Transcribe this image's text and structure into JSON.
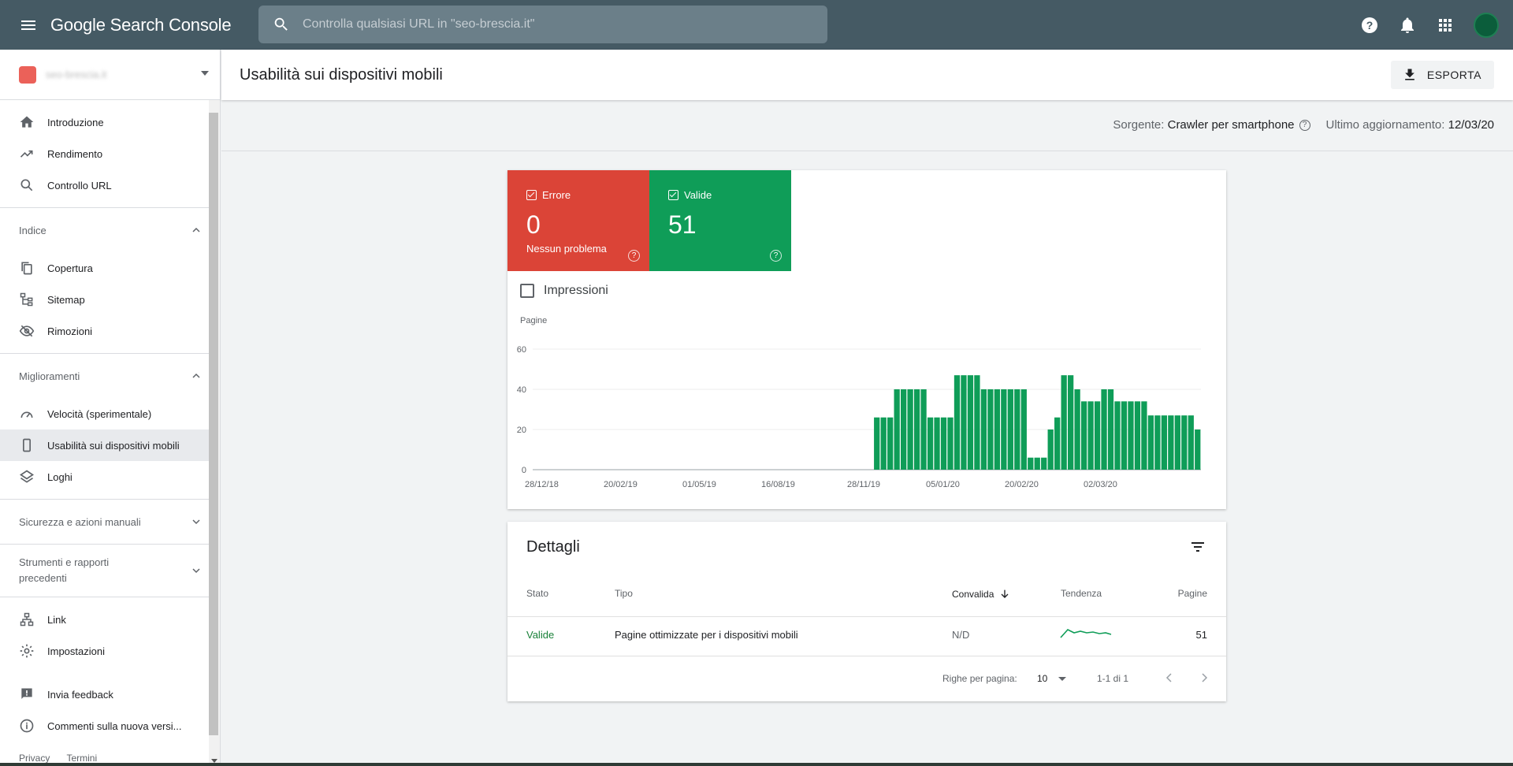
{
  "app": {
    "title": "Google Search Console"
  },
  "search": {
    "placeholder": "Controlla qualsiasi URL in \"seo-brescia.it\""
  },
  "property": {
    "name": "seo-brescia.it"
  },
  "sidebar": {
    "top_items": [
      {
        "label": "Introduzione",
        "icon": "home-icon"
      },
      {
        "label": "Rendimento",
        "icon": "trending-up-icon"
      },
      {
        "label": "Controllo URL",
        "icon": "search-icon"
      }
    ],
    "index_section": {
      "label": "Indice",
      "items": [
        {
          "label": "Copertura",
          "icon": "copy-icon"
        },
        {
          "label": "Sitemap",
          "icon": "sitemap-icon"
        },
        {
          "label": "Rimozioni",
          "icon": "eye-off-icon"
        }
      ]
    },
    "improvements_section": {
      "label": "Miglioramenti",
      "items": [
        {
          "label": "Velocità (sperimentale)",
          "icon": "speed-icon"
        },
        {
          "label": "Usabilità sui dispositivi mobili",
          "icon": "smartphone-icon"
        },
        {
          "label": "Loghi",
          "icon": "layers-icon"
        }
      ]
    },
    "security_section": {
      "label": "Sicurezza e azioni manuali"
    },
    "tools_section": {
      "label_line1": "Strumenti e rapporti",
      "label_line2": "precedenti"
    },
    "bottom_items": [
      {
        "label": "Link",
        "icon": "link-icon"
      },
      {
        "label": "Impostazioni",
        "icon": "gear-icon"
      }
    ],
    "feedback_items": [
      {
        "label": "Invia feedback",
        "icon": "feedback-icon"
      },
      {
        "label": "Commenti sulla nuova versi...",
        "icon": "info-icon"
      }
    ],
    "footer": {
      "privacy": "Privacy",
      "terms": "Termini"
    }
  },
  "header": {
    "title": "Usabilità sui dispositivi mobili",
    "export_label": "ESPORTA"
  },
  "source_bar": {
    "source_label": "Sorgente:",
    "source_value": "Crawler per smartphone",
    "updated_label": "Ultimo aggiornamento:",
    "updated_value": "12/03/20"
  },
  "stats": {
    "error": {
      "label": "Errore",
      "value": "0",
      "sub": "Nessun problema",
      "color": "#db4437"
    },
    "valid": {
      "label": "Valide",
      "value": "51",
      "color": "#0f9d58"
    }
  },
  "impressions_label": "Impressioni",
  "chart_data": {
    "type": "bar",
    "ylabel": "Pagine",
    "ylim": [
      0,
      60
    ],
    "yticks": [
      0,
      20,
      40,
      60
    ],
    "grid": true,
    "color": "#0f9d58",
    "xtick_labels": [
      "28/12/18",
      "20/02/19",
      "01/05/19",
      "16/08/19",
      "28/11/19",
      "05/01/20",
      "20/02/20",
      "02/03/20"
    ],
    "values": [
      0,
      0,
      0,
      0,
      0,
      0,
      0,
      0,
      0,
      0,
      0,
      0,
      0,
      0,
      0,
      0,
      0,
      0,
      0,
      0,
      0,
      0,
      0,
      0,
      0,
      0,
      0,
      0,
      0,
      0,
      0,
      0,
      0,
      0,
      0,
      0,
      0,
      0,
      0,
      0,
      0,
      0,
      0,
      0,
      0,
      0,
      0,
      0,
      0,
      0,
      0,
      26,
      26,
      26,
      40,
      40,
      40,
      40,
      40,
      26,
      26,
      26,
      26,
      47,
      47,
      47,
      47,
      40,
      40,
      40,
      40,
      40,
      40,
      40,
      6,
      6,
      6,
      20,
      26,
      47,
      47,
      40,
      34,
      34,
      34,
      40,
      40,
      34,
      34,
      34,
      34,
      34,
      27,
      27,
      27,
      27,
      27,
      27,
      27,
      20
    ]
  },
  "details": {
    "title": "Dettagli",
    "columns": {
      "status": "Stato",
      "type": "Tipo",
      "validation": "Convalida",
      "trend": "Tendenza",
      "pages": "Pagine"
    },
    "rows": [
      {
        "status": "Valide",
        "type": "Pagine ottimizzate per i dispositivi mobili",
        "validation": "N/D",
        "pages": "51"
      }
    ],
    "pagination": {
      "rows_label": "Righe per pagina:",
      "rows_value": "10",
      "range": "1-1 di 1"
    }
  }
}
